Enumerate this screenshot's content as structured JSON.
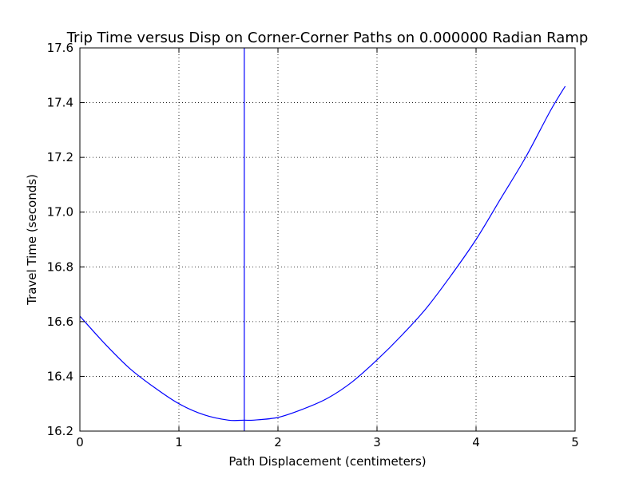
{
  "chart_data": {
    "type": "line",
    "title": "Trip Time versus Disp on Corner-Corner Paths on 0.000000 Radian Ramp",
    "xlabel": "Path Displacement (centimeters)",
    "ylabel": "Travel Time (seconds)",
    "xlim": [
      0,
      5
    ],
    "ylim": [
      16.2,
      17.6
    ],
    "xticks": [
      0,
      1,
      2,
      3,
      4,
      5
    ],
    "xtick_labels": [
      "0",
      "1",
      "2",
      "3",
      "4",
      "5"
    ],
    "yticks": [
      16.2,
      16.4,
      16.6,
      16.8,
      17.0,
      17.2,
      17.4,
      17.6
    ],
    "ytick_labels": [
      "16.2",
      "16.4",
      "16.6",
      "16.8",
      "17.0",
      "17.2",
      "17.4",
      "17.6"
    ],
    "grid": true,
    "grid_style": "dotted",
    "series": [
      {
        "color": "#0000ff",
        "x": [
          0,
          0.25,
          0.5,
          0.75,
          1.0,
          1.25,
          1.5,
          1.66,
          1.75,
          2.0,
          2.25,
          2.5,
          2.75,
          3.0,
          3.25,
          3.5,
          3.75,
          4.0,
          4.25,
          4.5,
          4.75,
          4.9
        ],
        "y": [
          16.62,
          16.52,
          16.43,
          16.36,
          16.3,
          16.26,
          16.24,
          16.24,
          16.24,
          16.25,
          16.28,
          16.32,
          16.38,
          16.46,
          16.55,
          16.65,
          16.77,
          16.9,
          17.05,
          17.2,
          17.37,
          17.46
        ]
      }
    ],
    "vertical_lines": [
      {
        "x": 1.66,
        "color": "#0000ff"
      }
    ]
  }
}
